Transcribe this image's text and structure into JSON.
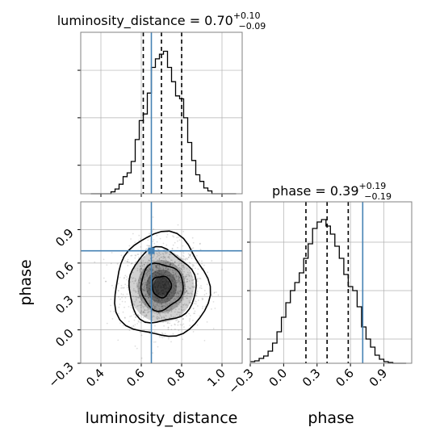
{
  "colors": {
    "truth": "#4682b4",
    "hist": "#000000",
    "grid": "#b0b0b0",
    "frame": "#808080"
  },
  "chart_data": [
    {
      "type": "histogram",
      "panel": "luminosity_distance-marginal",
      "title": {
        "main": "luminosity_distance = 0.70",
        "sup": "+0.10",
        "sub": "−0.09"
      },
      "bin_edges": [
        0.35,
        0.37,
        0.39,
        0.41,
        0.43,
        0.45,
        0.47,
        0.49,
        0.51,
        0.53,
        0.55,
        0.57,
        0.59,
        0.61,
        0.63,
        0.65,
        0.67,
        0.69,
        0.71,
        0.73,
        0.75,
        0.77,
        0.79,
        0.81,
        0.83,
        0.85,
        0.87,
        0.89,
        0.91,
        0.93,
        0.95,
        0.97,
        0.99,
        1.01,
        1.03,
        1.05,
        1.07
      ],
      "counts": [
        0,
        0,
        0,
        0,
        0,
        2,
        5,
        10,
        18,
        22,
        34,
        57,
        77,
        84,
        106,
        133,
        142,
        147,
        150,
        133,
        118,
        103,
        100,
        80,
        54,
        35,
        20,
        13,
        6,
        3,
        0,
        0,
        0,
        0,
        0,
        0
      ],
      "quantiles": [
        0.61,
        0.7,
        0.8
      ],
      "truth": 0.65,
      "xlim": [
        0.3,
        1.1
      ],
      "ylim": [
        0,
        170
      ]
    },
    {
      "type": "histogram",
      "panel": "phase-marginal",
      "title": {
        "main": "phase = 0.39",
        "sup": "+0.19",
        "sub": "−0.19"
      },
      "bin_edges": [
        -0.3,
        -0.26,
        -0.22,
        -0.18,
        -0.14,
        -0.1,
        -0.06,
        -0.02,
        0.02,
        0.06,
        0.1,
        0.14,
        0.18,
        0.22,
        0.26,
        0.3,
        0.34,
        0.38,
        0.42,
        0.46,
        0.5,
        0.54,
        0.58,
        0.62,
        0.66,
        0.7,
        0.74,
        0.78,
        0.82,
        0.86,
        0.9,
        0.94,
        0.98,
        1.02,
        1.06,
        1.1
      ],
      "counts": [
        2,
        3,
        6,
        9,
        15,
        25,
        39,
        57,
        75,
        90,
        100,
        112,
        130,
        148,
        167,
        175,
        178,
        170,
        160,
        145,
        130,
        110,
        95,
        90,
        70,
        45,
        30,
        20,
        10,
        5,
        2,
        1,
        0,
        0,
        0
      ],
      "quantiles": [
        0.2,
        0.39,
        0.58
      ],
      "truth": 0.71,
      "xlim": [
        -0.3,
        1.15
      ],
      "ylim": [
        0,
        200
      ]
    },
    {
      "type": "scatter",
      "panel": "joint-density",
      "description_series": "2D posterior samples with density contours",
      "center": {
        "x": 0.7,
        "y": 0.39
      },
      "spread": {
        "x": 0.095,
        "y": 0.19
      },
      "n_points": 1600,
      "truth": {
        "x": 0.65,
        "y": 0.71
      },
      "xlim": [
        0.3,
        1.1
      ],
      "ylim": [
        -0.3,
        1.15
      ]
    }
  ],
  "axes": {
    "corner_x": {
      "ticks": [
        0.4,
        0.6,
        0.8,
        1.0
      ],
      "tick_labels": [
        "0.4",
        "0.6",
        "0.8",
        "1.0"
      ],
      "label": "luminosity_distance"
    },
    "corner_y": {
      "ticks": [
        -0.3,
        0.0,
        0.3,
        0.6,
        0.9
      ],
      "tick_labels": [
        "−0.3",
        "0.0",
        "0.3",
        "0.6",
        "0.9"
      ],
      "label": "phase"
    },
    "phase_x": {
      "ticks": [
        -0.3,
        0.0,
        0.3,
        0.6,
        0.9
      ],
      "tick_labels": [
        "−0.3",
        "0.0",
        "0.3",
        "0.6",
        "0.9"
      ],
      "label": "phase"
    }
  }
}
